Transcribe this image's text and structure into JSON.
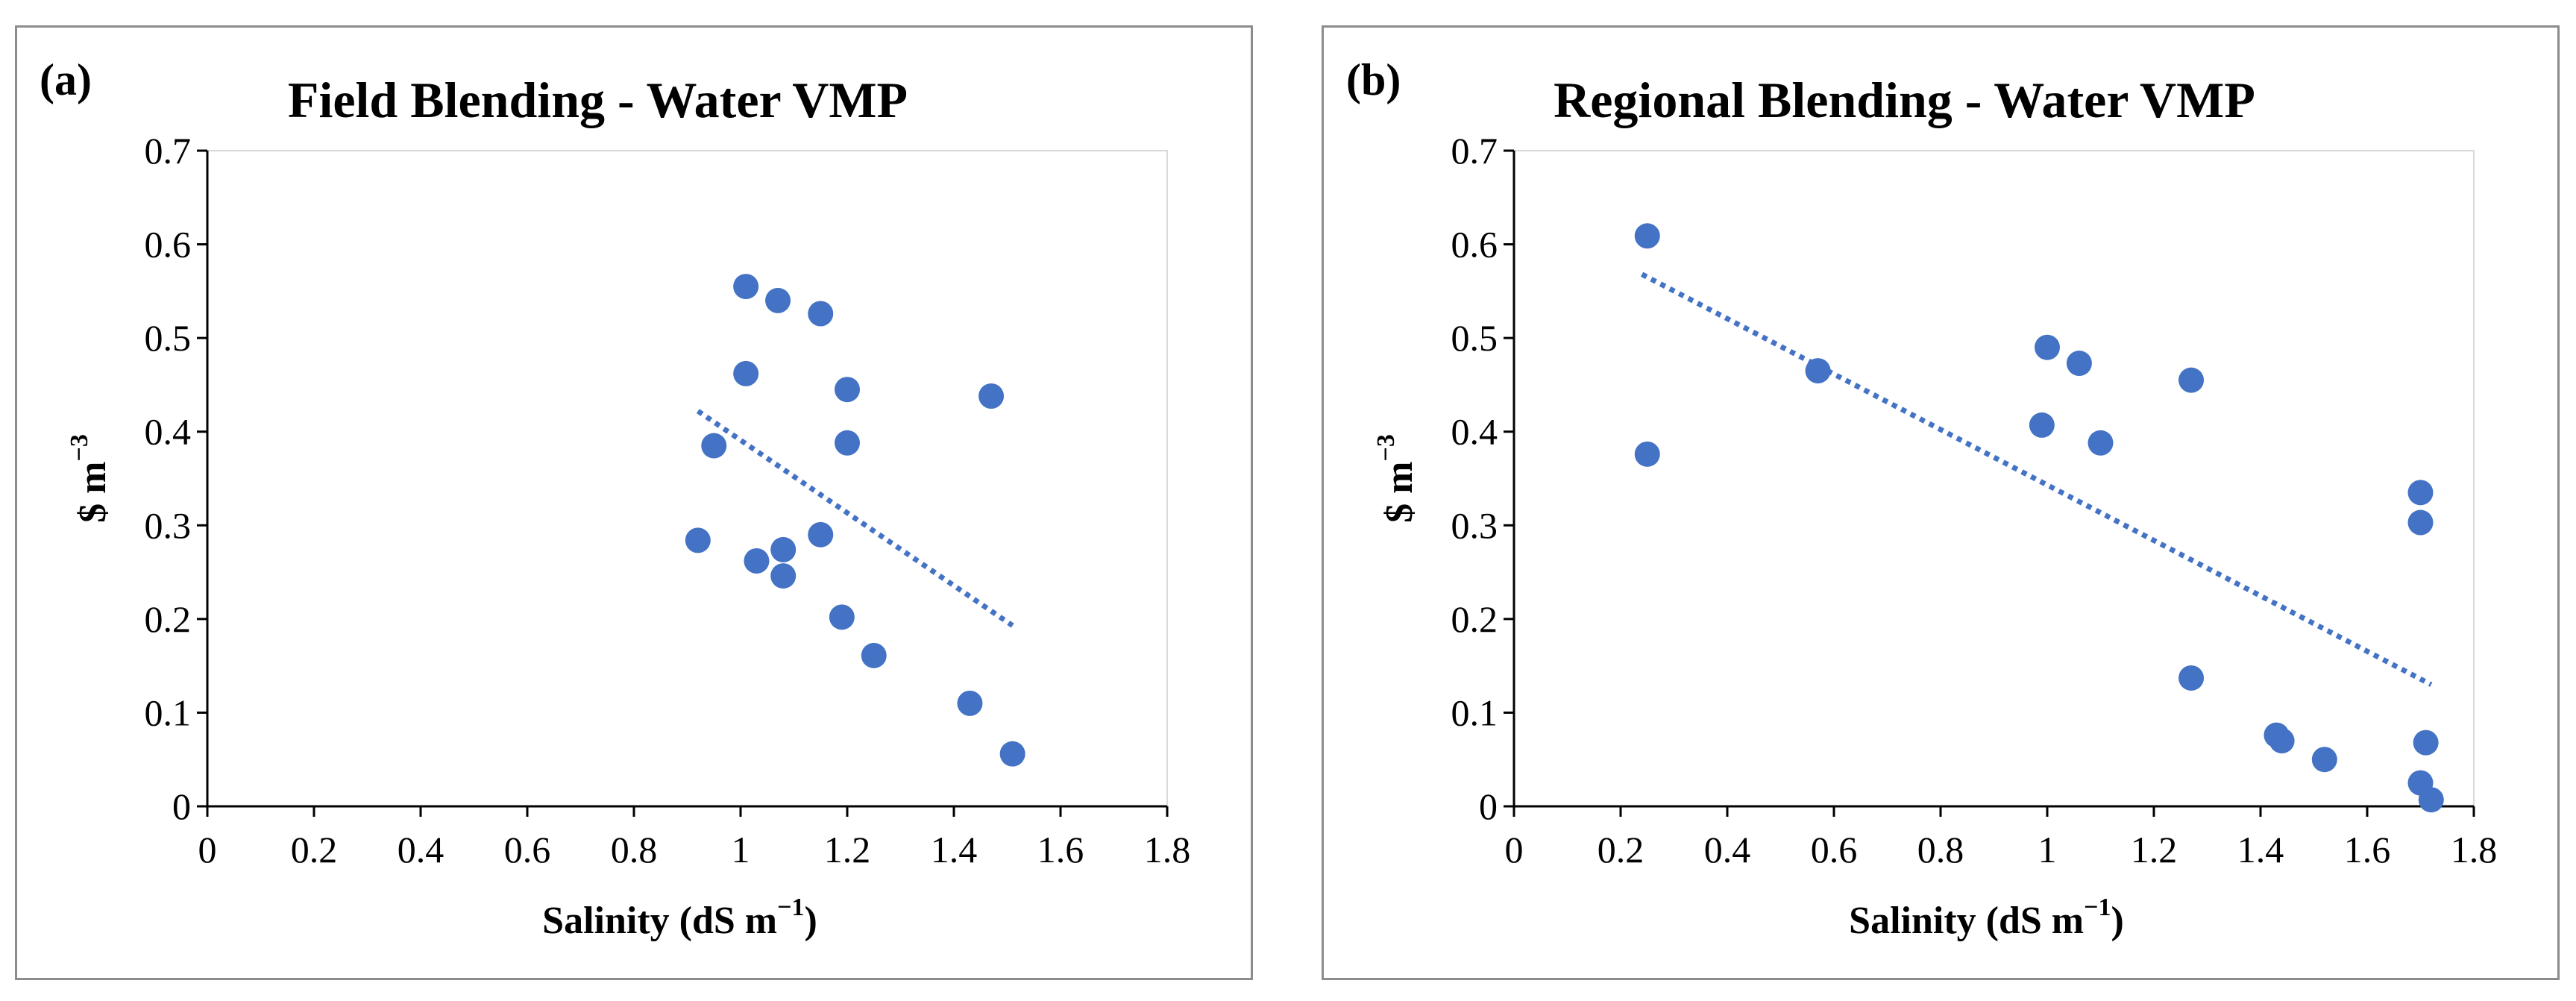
{
  "colors": {
    "marker": "#4472c4",
    "trendline": "#4472c4",
    "axis": "#000000",
    "frame": "#8c8c8c"
  },
  "chart_data": [
    {
      "type": "scatter",
      "panel_label": "(a)",
      "title": "Field Blending - Water VMP",
      "xlabel": "Salinity (dS m",
      "xlabel_sup": "−1",
      "xlabel_end": ")",
      "ylabel": "$ m",
      "ylabel_sup": "−3",
      "xlim": [
        0,
        1.8
      ],
      "ylim": [
        0,
        0.7
      ],
      "xticks": [
        "0",
        "0.2",
        "0.4",
        "0.6",
        "0.8",
        "1",
        "1.2",
        "1.4",
        "1.6",
        "1.8"
      ],
      "yticks": [
        "0",
        "0.1",
        "0.2",
        "0.3",
        "0.4",
        "0.5",
        "0.6",
        "0.7"
      ],
      "trendline": {
        "style": "dotted-linear",
        "x": [
          0.92,
          1.51
        ],
        "y": [
          0.422,
          0.193
        ]
      },
      "points": [
        {
          "x": 1.01,
          "y": 0.555
        },
        {
          "x": 1.07,
          "y": 0.54
        },
        {
          "x": 1.15,
          "y": 0.526
        },
        {
          "x": 1.01,
          "y": 0.462
        },
        {
          "x": 1.2,
          "y": 0.445
        },
        {
          "x": 1.47,
          "y": 0.438
        },
        {
          "x": 0.95,
          "y": 0.385
        },
        {
          "x": 1.2,
          "y": 0.388
        },
        {
          "x": 0.92,
          "y": 0.284
        },
        {
          "x": 1.03,
          "y": 0.262
        },
        {
          "x": 1.08,
          "y": 0.274
        },
        {
          "x": 1.15,
          "y": 0.29
        },
        {
          "x": 1.08,
          "y": 0.246
        },
        {
          "x": 1.19,
          "y": 0.202
        },
        {
          "x": 1.25,
          "y": 0.161
        },
        {
          "x": 1.43,
          "y": 0.11
        },
        {
          "x": 1.51,
          "y": 0.056
        }
      ]
    },
    {
      "type": "scatter",
      "panel_label": "(b)",
      "title": "Regional Blending - Water VMP",
      "xlabel": "Salinity (dS m",
      "xlabel_sup": "−1",
      "xlabel_end": ")",
      "ylabel": "$ m",
      "ylabel_sup": "−3",
      "xlim": [
        0,
        1.8
      ],
      "ylim": [
        0,
        0.7
      ],
      "xticks": [
        "0",
        "0.2",
        "0.4",
        "0.6",
        "0.8",
        "1",
        "1.2",
        "1.4",
        "1.6",
        "1.8"
      ],
      "yticks": [
        "0",
        "0.1",
        "0.2",
        "0.3",
        "0.4",
        "0.5",
        "0.6",
        "0.7"
      ],
      "trendline": {
        "style": "dotted-linear",
        "x": [
          0.24,
          1.72
        ],
        "y": [
          0.568,
          0.13
        ]
      },
      "points": [
        {
          "x": 0.25,
          "y": 0.609
        },
        {
          "x": 0.25,
          "y": 0.376
        },
        {
          "x": 0.57,
          "y": 0.465
        },
        {
          "x": 1.0,
          "y": 0.49
        },
        {
          "x": 1.06,
          "y": 0.473
        },
        {
          "x": 0.99,
          "y": 0.407
        },
        {
          "x": 1.1,
          "y": 0.388
        },
        {
          "x": 1.27,
          "y": 0.455
        },
        {
          "x": 1.27,
          "y": 0.137
        },
        {
          "x": 1.43,
          "y": 0.076
        },
        {
          "x": 1.44,
          "y": 0.07
        },
        {
          "x": 1.52,
          "y": 0.05
        },
        {
          "x": 1.7,
          "y": 0.335
        },
        {
          "x": 1.7,
          "y": 0.303
        },
        {
          "x": 1.71,
          "y": 0.068
        },
        {
          "x": 1.7,
          "y": 0.025
        },
        {
          "x": 1.72,
          "y": 0.007
        }
      ]
    }
  ]
}
